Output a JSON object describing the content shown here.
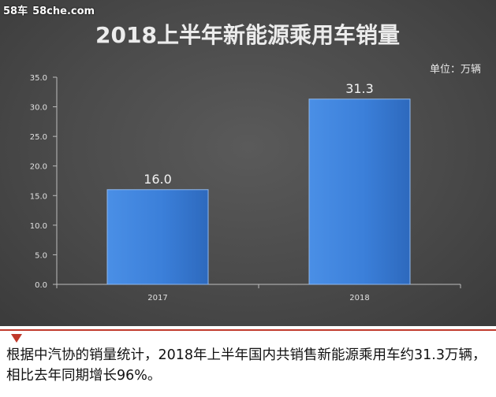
{
  "watermark": {
    "brand": "58车",
    "site": "58che.com"
  },
  "caption": "根据中汽协的销量统计，2018年上半年国内共销售新能源乘用车约31.3万辆，相比去年同期增长96%。",
  "colors": {
    "bar": "#3b7fd9",
    "accent": "#c0392b"
  },
  "chart_data": {
    "type": "bar",
    "title": "2018上半年新能源乘用车销量",
    "unit_label": "单位：万辆",
    "categories": [
      "2017",
      "2018"
    ],
    "values": [
      16.0,
      31.3
    ],
    "value_labels": [
      "16.0",
      "31.3"
    ],
    "y_ticks": [
      "0.0",
      "5.0",
      "10.0",
      "15.0",
      "20.0",
      "25.0",
      "30.0",
      "35.0"
    ],
    "ylim": [
      0,
      35
    ],
    "grid": false,
    "legend": "none"
  }
}
